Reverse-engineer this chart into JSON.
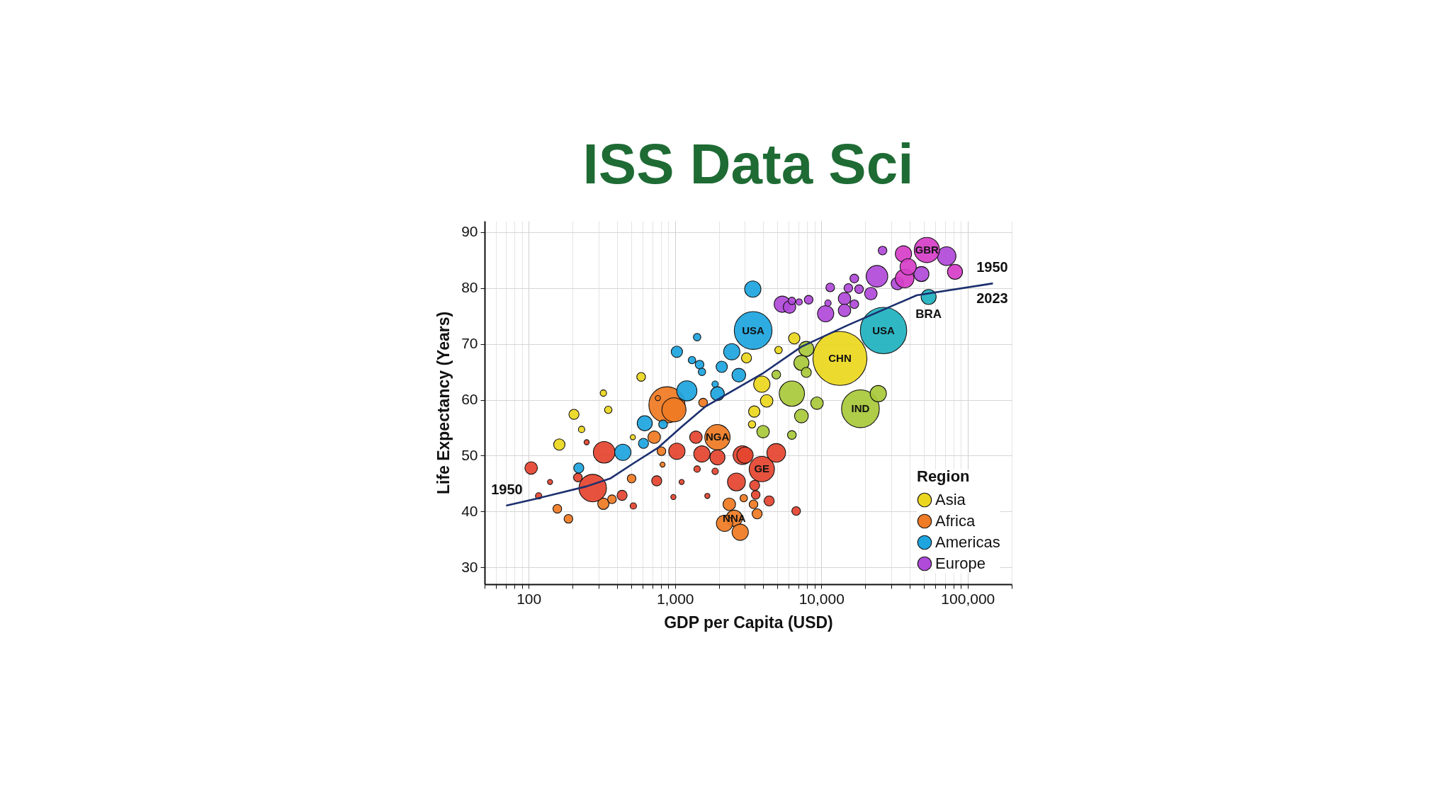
{
  "chart_data": {
    "type": "bubble",
    "title": "ISS Data Sci",
    "xlabel": "GDP per Capita (USD)",
    "ylabel": "Life Expectancy (Years)",
    "legend_title": "Region",
    "legend": "bottom right",
    "log": "x",
    "grid": true,
    "xlim": [
      50,
      200000
    ],
    "xticks": [
      {
        "value": 50,
        "label": null
      },
      {
        "value": 60,
        "label": null
      },
      {
        "value": 70,
        "label": null
      },
      {
        "value": 80,
        "label": null
      },
      {
        "value": 90,
        "label": null
      },
      100,
      {
        "value": 200,
        "label": null
      },
      {
        "value": 300,
        "label": null
      },
      {
        "value": 400,
        "label": null
      },
      {
        "value": 500,
        "label": null
      },
      {
        "value": 600,
        "label": null
      },
      {
        "value": 700,
        "label": null
      },
      {
        "value": 800,
        "label": null
      },
      {
        "value": 900,
        "label": null
      },
      {
        "value": 1000,
        "label": "1,000"
      },
      {
        "value": 2000,
        "label": null
      },
      {
        "value": 3000,
        "label": null
      },
      {
        "value": 4000,
        "label": null
      },
      {
        "value": 5000,
        "label": null
      },
      {
        "value": 6000,
        "label": null
      },
      {
        "value": 7000,
        "label": null
      },
      {
        "value": 8000,
        "label": null
      },
      {
        "value": 9000,
        "label": null
      },
      {
        "value": 10000,
        "label": "10,000"
      },
      {
        "value": 20000,
        "label": null
      },
      {
        "value": 30000,
        "label": null
      },
      {
        "value": 40000,
        "label": null
      },
      {
        "value": 50000,
        "label": null
      },
      {
        "value": 60000,
        "label": null
      },
      {
        "value": 70000,
        "label": null
      },
      {
        "value": 80000,
        "label": null
      },
      {
        "value": 90000,
        "label": null
      },
      {
        "value": 100000,
        "label": "100,000"
      },
      {
        "value": 200000,
        "label": null
      }
    ],
    "ylim": [
      27,
      92
    ],
    "yticks": [
      30,
      40,
      50,
      60,
      70,
      80,
      90
    ],
    "series": [
      {
        "name": "Asia",
        "color": "#ecd71f",
        "x": [
          3080,
          587,
          324,
          350,
          204,
          230,
          162,
          515,
          3480,
          13400,
          3920,
          4230,
          3360,
          6530,
          5100
        ],
        "values": [
          67.5,
          64.1,
          61.2,
          58.2,
          57.4,
          54.7,
          52.0,
          53.3,
          57.9,
          67.4,
          62.8,
          59.8,
          55.6,
          71.0,
          68.9
        ],
        "sizes": [
          0.035,
          0.026,
          0.014,
          0.019,
          0.035,
          0.014,
          0.044,
          0.009,
          0.044,
          1,
          0.091,
          0.054,
          0.019,
          0.044,
          0.019
        ]
      },
      {
        "color": "#a9c93b",
        "x": [
          18500,
          7890,
          7310,
          7890,
          4920,
          6290,
          9340,
          24500,
          4000,
          6290,
          7310
        ],
        "values": [
          58.4,
          69.1,
          66.6,
          64.9,
          64.5,
          61.1,
          59.4,
          61.1,
          54.3,
          53.7,
          57.1
        ],
        "sizes": [
          0.49,
          0.078,
          0.078,
          0.035,
          0.026,
          0.22,
          0.054,
          0.091,
          0.054,
          0.026,
          0.065
        ]
      },
      {
        "name": "Africa",
        "color": "#ef7b24",
        "x": [
          881,
          984,
          1556,
          764,
          721,
          808,
          822,
          157,
          187,
          324,
          371,
          505,
          1950,
          2540,
          2790,
          3440,
          3640,
          2950,
          2350,
          2180
        ],
        "values": [
          59.1,
          58.2,
          59.5,
          60.3,
          53.3,
          50.8,
          48.4,
          40.5,
          38.7,
          41.4,
          42.2,
          45.9,
          53.3,
          38.8,
          36.3,
          41.3,
          39.6,
          42.4,
          41.3,
          37.9
        ],
        "sizes": [
          0.45,
          0.2,
          0.026,
          0.009,
          0.054,
          0.026,
          0.009,
          0.026,
          0.026,
          0.044,
          0.026,
          0.026,
          0.22,
          0.091,
          0.091,
          0.026,
          0.035,
          0.019,
          0.054,
          0.091
        ]
      },
      {
        "color": "#e4452f",
        "x": [
          328,
          249,
          1030,
          1110,
          975,
          1416,
          1663,
          750,
          104,
          140,
          117,
          217,
          274,
          435,
          519,
          1390,
          1527,
          1950,
          2890,
          2630,
          1880,
          3920,
          4920,
          3010,
          3500,
          3560,
          4400,
          6730
        ],
        "values": [
          50.6,
          52.4,
          50.8,
          45.3,
          42.6,
          47.6,
          42.8,
          45.5,
          47.8,
          45.3,
          42.8,
          46.1,
          44.2,
          42.9,
          41.0,
          53.3,
          50.3,
          49.7,
          50.1,
          45.3,
          47.2,
          47.6,
          50.5,
          50.1,
          44.7,
          43.0,
          41.9,
          40.1
        ],
        "sizes": [
          0.16,
          0.009,
          0.091,
          0.009,
          0.009,
          0.014,
          0.009,
          0.035,
          0.054,
          0.009,
          0.014,
          0.026,
          0.26,
          0.035,
          0.014,
          0.054,
          0.091,
          0.078,
          0.12,
          0.11,
          0.014,
          0.22,
          0.12,
          0.091,
          0.035,
          0.026,
          0.035,
          0.026
        ]
      },
      {
        "name": "Americas",
        "color": "#1ea5df",
        "x": [
          1030,
          1306,
          1472,
          1528,
          1880,
          1950,
          1205,
          2086,
          2730,
          2443,
          1416,
          440,
          609,
          621,
          829,
          220,
          3420,
          3400
        ],
        "values": [
          68.6,
          67.1,
          66.3,
          65.0,
          62.8,
          61.1,
          61.6,
          65.9,
          64.4,
          68.6,
          71.2,
          50.6,
          52.2,
          55.8,
          55.6,
          47.8,
          72.4,
          79.8
        ],
        "sizes": [
          0.044,
          0.019,
          0.026,
          0.019,
          0.014,
          0.065,
          0.14,
          0.044,
          0.065,
          0.091,
          0.019,
          0.091,
          0.035,
          0.078,
          0.026,
          0.035,
          0.49,
          0.091
        ]
      },
      {
        "color": "#20b2bf",
        "x": [
          26600,
          54100
        ],
        "values": [
          72.4,
          78.4
        ],
        "sizes": [
          0.74,
          0.078
        ]
      },
      {
        "name": "Europe",
        "color": "#b04ad9",
        "x": [
          26200,
          71800,
          24000,
          16800,
          18100,
          11500,
          15300,
          33100,
          48300,
          21800,
          14400,
          16800,
          10700,
          14400,
          11100,
          8190,
          7050,
          5410,
          6060,
          6290
        ],
        "values": [
          86.7,
          85.7,
          82.1,
          81.7,
          79.8,
          80.1,
          80.0,
          80.8,
          82.5,
          79.0,
          78.1,
          77.1,
          75.4,
          76.0,
          77.3,
          77.9,
          77.5,
          77.1,
          76.6,
          77.7
        ],
        "sizes": [
          0.026,
          0.12,
          0.16,
          0.026,
          0.026,
          0.026,
          0.026,
          0.054,
          0.078,
          0.054,
          0.054,
          0.026,
          0.091,
          0.054,
          0.014,
          0.026,
          0.014,
          0.091,
          0.054,
          0.019
        ]
      },
      {
        "color": "#d640c8",
        "x": [
          36400,
          52600,
          81900,
          37100,
          39200
        ],
        "values": [
          86.1,
          86.8,
          82.9,
          81.7,
          83.8
        ],
        "sizes": [
          0.091,
          0.22,
          0.078,
          0.12,
          0.091
        ]
      },
      {
        "type": "line",
        "color": "#1c2f6e",
        "line_style": "solid",
        "x": [
          71,
          117,
          248,
          360,
          525,
          764,
          1112,
          1615,
          3970,
          7310,
          15000,
          44800,
          147000
        ],
        "values": [
          41.1,
          42.4,
          44.5,
          45.9,
          48.7,
          51.4,
          55.2,
          58.8,
          64.7,
          69.5,
          73.3,
          78.7,
          80.8
        ]
      }
    ],
    "annotations": [
      {
        "text": "USA",
        "x": 3420,
        "y": 72.4
      },
      {
        "text": "USA",
        "x": 26600,
        "y": 72.4
      },
      {
        "text": "CHN",
        "x": 13400,
        "y": 67.4
      },
      {
        "text": "IND",
        "x": 18500,
        "y": 58.4
      },
      {
        "text": "GBR",
        "x": 52600,
        "y": 86.8
      },
      {
        "text": "BRA",
        "x": 54100,
        "y": 78.4
      },
      {
        "text": "NGA",
        "x": 1950,
        "y": 53.3
      },
      {
        "text": "GE",
        "x": 3920,
        "y": 47.6
      },
      {
        "text": "NNA",
        "x": 2540,
        "y": 38.8
      },
      {
        "text": "1950",
        "x": 71,
        "y": 41.1
      },
      {
        "text": "1950",
        "x": 147000,
        "y": 80.8
      },
      {
        "text": "2023",
        "x": 147000,
        "y": 80.8
      }
    ]
  }
}
